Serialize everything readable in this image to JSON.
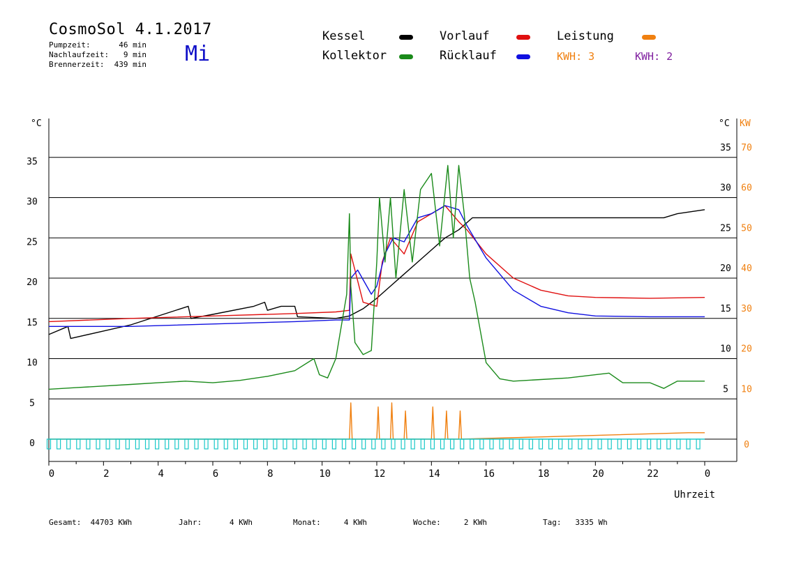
{
  "header": {
    "title": "CosmoSol 4.1.2017",
    "day": "Mi",
    "stats": [
      {
        "label": "Pumpzeit:",
        "value": "46 min"
      },
      {
        "label": "Nachlaufzeit:",
        "value": "9 min"
      },
      {
        "label": "Brennerzeit:",
        "value": "439 min"
      }
    ]
  },
  "legend": {
    "kessel": {
      "label": "Kessel",
      "color": "#000000"
    },
    "kollektor": {
      "label": "Kollektor",
      "color": "#1a8a1a"
    },
    "vorlauf": {
      "label": "Vorlauf",
      "color": "#e01010"
    },
    "ruecklauf": {
      "label": "Rücklauf",
      "color": "#1010e0"
    },
    "leistung": {
      "label": "Leistung",
      "color": "#f08010"
    },
    "kwh1": {
      "label": "KWH: 3",
      "color": "#f08010"
    },
    "kwh2": {
      "label": "KWH: 2",
      "color": "#8020a0"
    }
  },
  "footer": {
    "gesamt_label": "Gesamt:",
    "gesamt_value": "44703 KWh",
    "jahr_label": "Jahr:",
    "jahr_value": "4 KWh",
    "monat_label": "Monat:",
    "monat_value": "4 KWh",
    "woche_label": "Woche:",
    "woche_value": "2 KWh",
    "tag_label": "Tag:",
    "tag_value": "3335 Wh"
  },
  "chart_data": {
    "type": "line",
    "xlabel": "Uhrzeit",
    "x_ticks": [
      "0",
      "2",
      "4",
      "6",
      "8",
      "10",
      "12",
      "14",
      "16",
      "18",
      "20",
      "22",
      "0"
    ],
    "xlim": [
      0,
      24
    ],
    "y_left_unit": "°C",
    "y_left_ticks": [
      "0",
      "5",
      "10",
      "15",
      "20",
      "25",
      "30",
      "35"
    ],
    "y_right_unit": "°C",
    "y_right_ticks": [
      "5",
      "10",
      "15",
      "20",
      "25",
      "30",
      "35"
    ],
    "y2_unit": "KW",
    "y2_ticks": [
      "0",
      "10",
      "20",
      "30",
      "40",
      "50",
      "60",
      "70"
    ],
    "ylim": [
      0,
      35
    ],
    "grid": "horizontal",
    "series": [
      {
        "name": "Kessel",
        "color": "#000000",
        "x": [
          0,
          0.7,
          0.8,
          3,
          5.1,
          5.2,
          6,
          7.5,
          7.9,
          8,
          8.5,
          9,
          9.1,
          10.5,
          11,
          11.5,
          12,
          12.5,
          13,
          13.5,
          14,
          14.5,
          15,
          15.5,
          20,
          22.5,
          23,
          24
        ],
        "y": [
          13,
          14,
          12.5,
          14.2,
          16.5,
          15,
          15.5,
          16.5,
          17,
          16,
          16.5,
          16.5,
          15.2,
          15,
          15.3,
          16.2,
          17.5,
          19,
          20.5,
          22,
          23.5,
          25,
          26,
          27.5,
          27.5,
          27.5,
          28,
          28.5
        ]
      },
      {
        "name": "Vorlauf",
        "color": "#e01010",
        "x": [
          0,
          3,
          6,
          9,
          10.5,
          11,
          11.05,
          11.5,
          12,
          12.2,
          12.5,
          13,
          13.5,
          14,
          14.5,
          15,
          15.3,
          16,
          17,
          18,
          19,
          20,
          22,
          24
        ],
        "y": [
          14.6,
          15,
          15.3,
          15.6,
          15.8,
          16,
          23,
          17,
          16.5,
          22,
          25,
          23,
          27,
          28,
          29,
          27,
          26,
          23,
          20,
          18.5,
          17.8,
          17.6,
          17.5,
          17.6
        ]
      },
      {
        "name": "Rücklauf",
        "color": "#1010e0",
        "x": [
          0,
          3,
          6,
          9,
          10.5,
          11,
          11.05,
          11.3,
          11.8,
          12,
          12.3,
          12.6,
          13,
          13.5,
          14,
          14.5,
          15,
          15.3,
          16,
          17,
          18,
          19,
          20,
          22,
          24
        ],
        "y": [
          14,
          14,
          14.3,
          14.6,
          14.8,
          14.8,
          20,
          21,
          18,
          19,
          23,
          25,
          24.5,
          27.5,
          28,
          29,
          28.5,
          26.5,
          22.5,
          18.5,
          16.5,
          15.7,
          15.3,
          15.2,
          15.2
        ]
      },
      {
        "name": "Kollektor",
        "color": "#1a8a1a",
        "x": [
          0,
          1,
          2,
          3,
          4,
          5,
          6,
          7,
          8,
          9,
          9.7,
          9.9,
          10.2,
          10.5,
          10.7,
          10.9,
          11,
          11.05,
          11.2,
          11.5,
          11.8,
          12,
          12.1,
          12.3,
          12.5,
          12.7,
          13,
          13.3,
          13.6,
          14,
          14.3,
          14.6,
          14.8,
          15,
          15.2,
          15.4,
          15.6,
          16,
          16.5,
          17,
          18,
          19,
          20,
          20.5,
          21,
          22,
          22.5,
          23,
          24
        ],
        "y": [
          6.2,
          6.4,
          6.6,
          6.8,
          7.0,
          7.2,
          7.0,
          7.3,
          7.8,
          8.5,
          10,
          8,
          7.6,
          10,
          14,
          18,
          28,
          19,
          12,
          10.5,
          11,
          22,
          30,
          22,
          30,
          20,
          31,
          22,
          31,
          33,
          24,
          34,
          25,
          34,
          28,
          20,
          17,
          9.5,
          7.5,
          7.2,
          7.4,
          7.6,
          8.0,
          8.2,
          7.0,
          7.0,
          6.3,
          7.2,
          7.2
        ]
      },
      {
        "name": "Leistung",
        "color": "#f08010",
        "x": [
          0,
          11,
          11.05,
          11.1,
          12,
          12.05,
          12.1,
          12.5,
          12.55,
          12.6,
          13,
          13.05,
          13.1,
          14,
          14.05,
          14.1,
          14.5,
          14.55,
          14.6,
          15,
          15.05,
          15.1,
          23.4,
          24
        ],
        "y": [
          0,
          0,
          4.5,
          0,
          0,
          4,
          0,
          0,
          4.5,
          0,
          0,
          3.5,
          0,
          0,
          4,
          0,
          0,
          3.5,
          0,
          0,
          3.5,
          0,
          0.8,
          0.8
        ]
      }
    ]
  }
}
